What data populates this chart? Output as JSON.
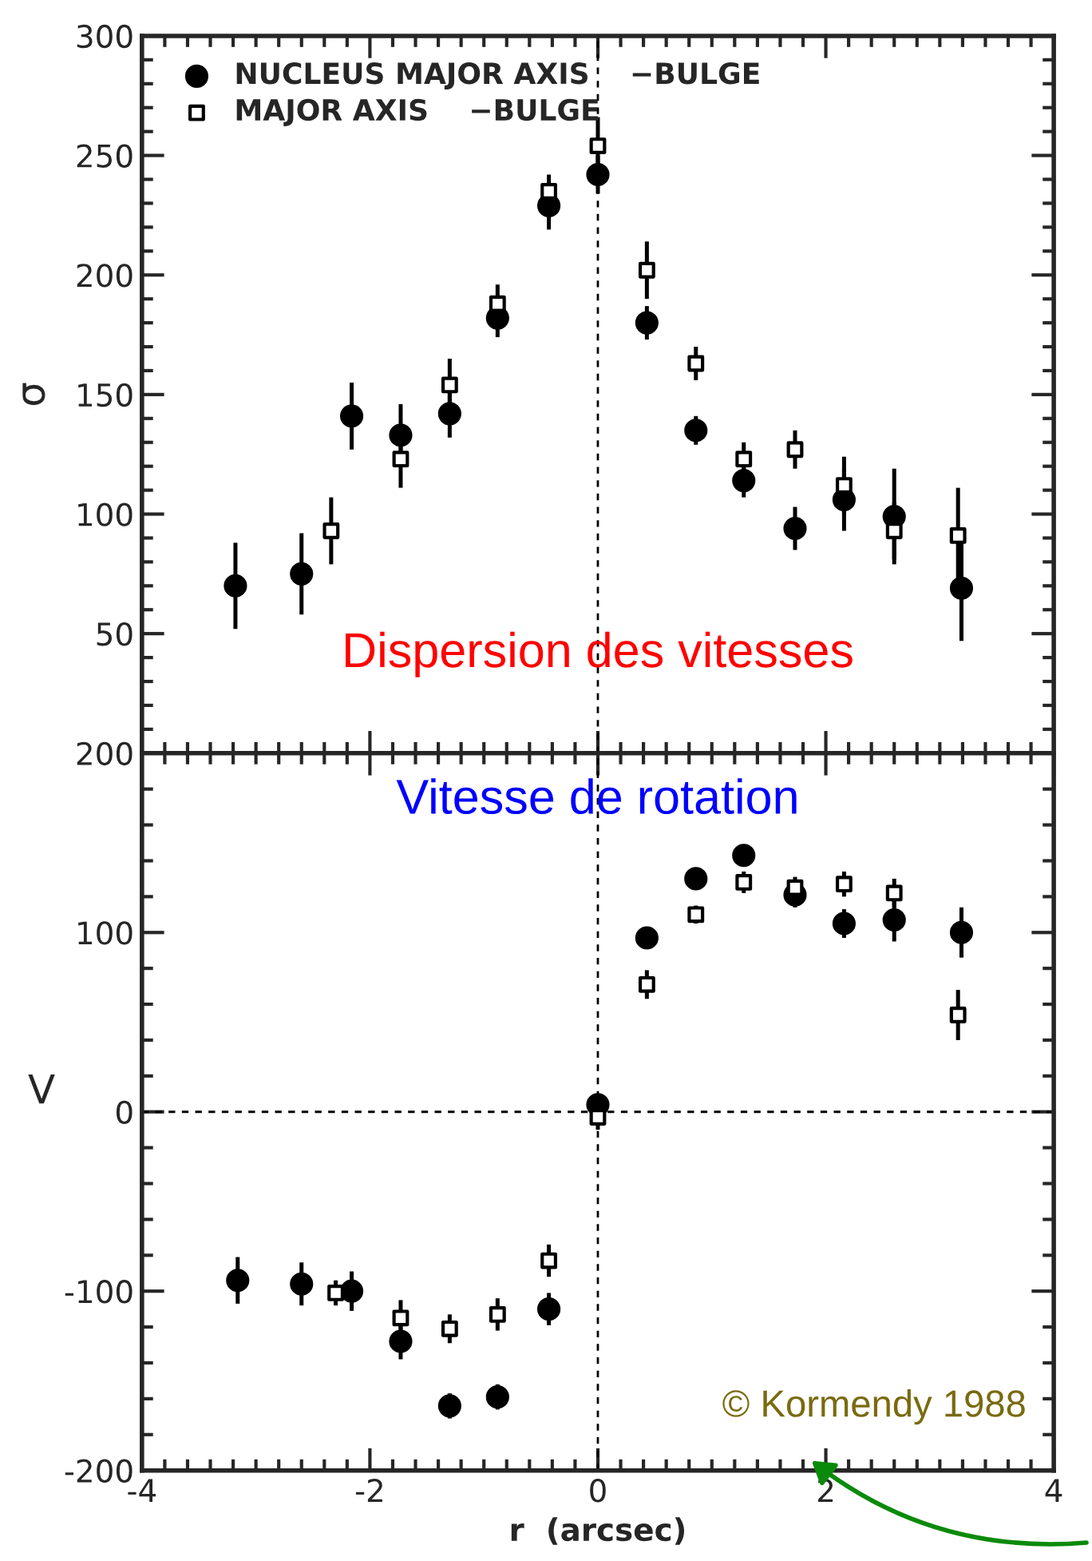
{
  "chart_data": [
    {
      "type": "scatter",
      "ylabel": "σ",
      "xlim": [
        -4,
        4
      ],
      "xticks": [
        -4,
        -2,
        0,
        2,
        4
      ],
      "ylim": [
        0,
        300
      ],
      "yticks": [
        50,
        100,
        150,
        200,
        250,
        300
      ],
      "tick_labels": "y",
      "legend": "top left",
      "grid": false,
      "annotations": [
        "Dispersion des vitesses"
      ],
      "ref_lines": [
        {
          "axis": "x",
          "value": 0,
          "label": null,
          "color": "#000000",
          "line_style": "dashed"
        }
      ],
      "series": [
        {
          "name": "NUCLEUS MAJOR AXIS    −BULGE",
          "color": "#000000",
          "marker": "circle",
          "x": [
            -3.18,
            -2.6,
            -2.16,
            -1.73,
            -1.3,
            -0.88,
            -0.43,
            0,
            0.43,
            0.86,
            1.28,
            1.73,
            2.16,
            2.6,
            3.19
          ],
          "values": [
            70,
            75,
            141,
            133,
            142,
            182,
            229,
            242,
            180,
            135,
            114,
            94,
            106,
            99,
            69
          ],
          "errors": [
            18,
            17,
            14,
            13,
            10,
            8,
            10,
            8,
            7,
            6,
            7,
            9,
            13,
            20,
            22
          ]
        },
        {
          "name": "MAJOR AXIS    −BULGE",
          "color": "#000000",
          "marker": "square",
          "x": [
            -2.34,
            -1.73,
            -1.3,
            -0.88,
            -0.43,
            0,
            0.43,
            0.86,
            1.28,
            1.73,
            2.16,
            2.6,
            3.16
          ],
          "values": [
            93,
            123,
            154,
            188,
            235,
            254,
            202,
            163,
            123,
            127,
            112,
            93,
            91
          ],
          "errors": [
            14,
            12,
            11,
            8,
            7,
            12,
            12,
            7,
            7,
            8,
            12,
            12,
            20
          ]
        }
      ]
    },
    {
      "type": "scatter",
      "ylabel": "V",
      "xlabel": "r  (arcsec)",
      "xlim": [
        -4,
        4
      ],
      "xticks": [
        -4,
        -2,
        0,
        2,
        4
      ],
      "ylim": [
        -200,
        200
      ],
      "yticks": [
        -200,
        -100,
        0,
        100,
        200
      ],
      "legend": false,
      "grid": false,
      "annotations": [
        "Vitesse de rotation",
        "© Kormendy 1988"
      ],
      "ref_lines": [
        {
          "axis": "x",
          "value": 0,
          "label": null,
          "color": "#000000",
          "line_style": "dashed"
        },
        {
          "axis": "y",
          "value": 0,
          "label": null,
          "color": "#000000",
          "line_style": "dashed"
        }
      ],
      "series": [
        {
          "color": "#000000",
          "marker": "circle",
          "x": [
            -3.16,
            -2.6,
            -2.16,
            -1.73,
            -1.3,
            -0.88,
            -0.43,
            0,
            0.43,
            0.86,
            1.28,
            1.73,
            2.16,
            2.6,
            3.19
          ],
          "values": [
            -94,
            -96,
            -100,
            -128,
            -164,
            -159,
            -110,
            4,
            97,
            130,
            143,
            121,
            105,
            107,
            100
          ],
          "errors": [
            13,
            12,
            11,
            10,
            7,
            7,
            9,
            5,
            6,
            5,
            4,
            7,
            8,
            12,
            14
          ]
        },
        {
          "color": "#000000",
          "marker": "square",
          "x": [
            -2.3,
            -1.73,
            -1.3,
            -0.88,
            -0.43,
            0,
            0.43,
            0.86,
            1.28,
            1.73,
            2.16,
            2.6,
            3.16
          ],
          "values": [
            -101,
            -115,
            -121,
            -113,
            -83,
            -3,
            71,
            110,
            128,
            125,
            127,
            122,
            54
          ],
          "errors": [
            7,
            10,
            8,
            9,
            9,
            7,
            8,
            5,
            6,
            6,
            7,
            8,
            14
          ]
        }
      ]
    }
  ]
}
